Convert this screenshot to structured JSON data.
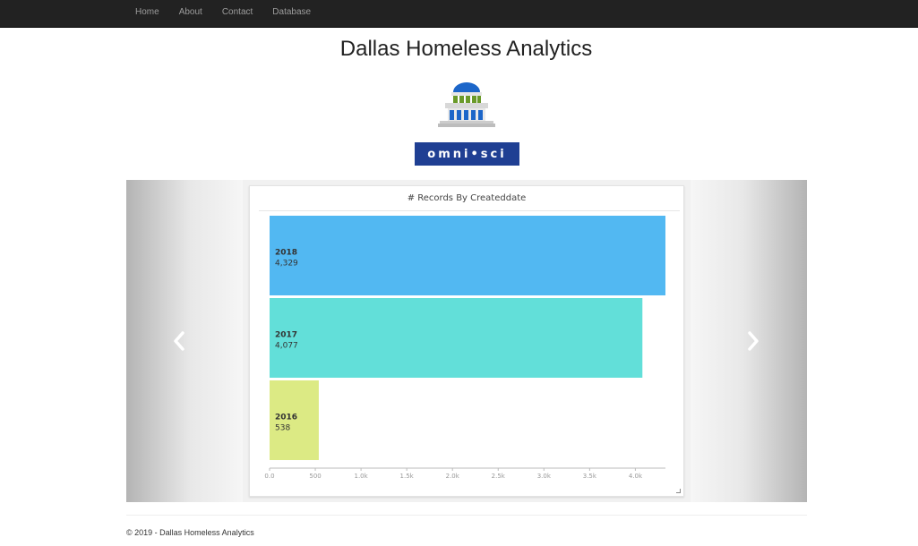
{
  "nav": {
    "items": [
      {
        "label": "Home"
      },
      {
        "label": "About"
      },
      {
        "label": "Contact"
      },
      {
        "label": "Database"
      }
    ]
  },
  "header": {
    "title": "Dallas Homeless Analytics"
  },
  "omnisci_logo_text": "omni•sci",
  "colors": {
    "navbar": "#222222",
    "omnisci_brand": "#1f3f93",
    "bar_2018": "#52b8f2",
    "bar_2017": "#62dfd9",
    "bar_2016": "#dcea84"
  },
  "carousel": {
    "prev_icon": "chevron-left-icon",
    "next_icon": "chevron-right-icon"
  },
  "chart_data": {
    "type": "bar",
    "orientation": "horizontal",
    "title": "# Records By Createddate",
    "categories": [
      "2018",
      "2017",
      "2016"
    ],
    "values": [
      4329,
      4077,
      538
    ],
    "value_labels": [
      "4,329",
      "4,077",
      "538"
    ],
    "xlim": [
      0,
      4329
    ],
    "x_ticks": [
      0,
      500,
      1000,
      1500,
      2000,
      2500,
      3000,
      3500,
      4000
    ],
    "x_tick_labels": [
      "0.0",
      "500",
      "1.0k",
      "1.5k",
      "2.0k",
      "2.5k",
      "3.0k",
      "3.5k",
      "4.0k"
    ],
    "colors": [
      "#52b8f2",
      "#62dfd9",
      "#dcea84"
    ]
  },
  "footer": {
    "text": "© 2019 - Dallas Homeless Analytics"
  }
}
